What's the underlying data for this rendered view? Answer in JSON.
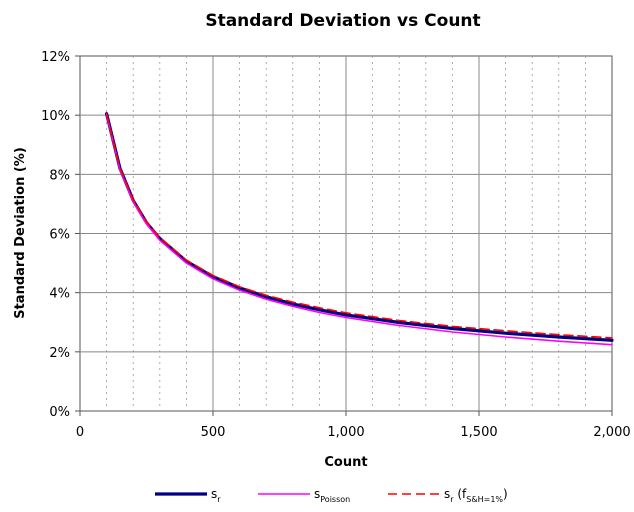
{
  "chart_data": {
    "type": "line",
    "title": "Standard Deviation vs Count",
    "xlabel": "Count",
    "ylabel": "Standard Deviation (%)",
    "xlim": [
      0,
      2000
    ],
    "ylim": [
      0,
      12
    ],
    "x_ticks": [
      0,
      500,
      1000,
      1500,
      2000
    ],
    "x_tick_labels": [
      "0",
      "500",
      "1,000",
      "1,500",
      "2,000"
    ],
    "y_ticks": [
      0,
      2,
      4,
      6,
      8,
      10,
      12
    ],
    "y_tick_labels": [
      "0%",
      "2%",
      "4%",
      "6%",
      "8%",
      "10%",
      "12%"
    ],
    "grid": true,
    "minor_x_grid_step": 100,
    "legend_position": "bottom",
    "x": [
      100,
      150,
      200,
      250,
      300,
      400,
      500,
      600,
      700,
      800,
      900,
      1000,
      1200,
      1400,
      1600,
      1800,
      2000
    ],
    "series": [
      {
        "legend_main": "s",
        "legend_sub": "r",
        "legend_paren": "",
        "color": "#000080",
        "style": "solid",
        "width": 3.2,
        "values": [
          10.05,
          8.21,
          7.12,
          6.37,
          5.83,
          5.06,
          4.54,
          4.16,
          3.86,
          3.62,
          3.42,
          3.25,
          2.99,
          2.79,
          2.63,
          2.5,
          2.39
        ]
      },
      {
        "legend_main": "s",
        "legend_sub": "Poisson",
        "legend_paren": "",
        "color": "#ff00ff",
        "style": "solid",
        "width": 1.6,
        "values": [
          10.0,
          8.16,
          7.07,
          6.32,
          5.77,
          5.0,
          4.47,
          4.08,
          3.78,
          3.54,
          3.33,
          3.16,
          2.89,
          2.67,
          2.5,
          2.36,
          2.24
        ]
      },
      {
        "legend_main": "s",
        "legend_sub": "r",
        "legend_paren": "(f",
        "legend_paren_sub": "S&H=1%",
        "legend_paren_close": ")",
        "color": "#ff0000",
        "style": "dashed",
        "width": 1.6,
        "values": [
          10.05,
          8.22,
          7.14,
          6.4,
          5.86,
          5.1,
          4.58,
          4.2,
          3.91,
          3.68,
          3.49,
          3.32,
          3.06,
          2.86,
          2.71,
          2.58,
          2.47
        ]
      }
    ]
  }
}
